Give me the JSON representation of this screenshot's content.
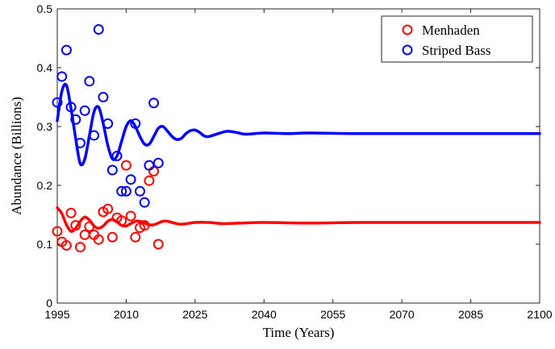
{
  "chart_data": {
    "type": "line",
    "title": "",
    "xlabel": "Time (Years)",
    "ylabel": "Abundance (Billions)",
    "xlim": [
      1995,
      2100
    ],
    "ylim": [
      0,
      0.5
    ],
    "xticks": [
      1995,
      2010,
      2025,
      2040,
      2055,
      2070,
      2085,
      2100
    ],
    "xtick_labels": [
      "1995",
      "2010",
      "2025",
      "2040",
      "2055",
      "2070",
      "2085",
      "2100"
    ],
    "yticks": [
      0,
      0.1,
      0.2,
      0.3,
      0.4,
      0.5
    ],
    "ytick_labels": [
      "0",
      "0.1",
      "0.2",
      "0.3",
      "0.4",
      "0.5"
    ],
    "grid": false,
    "legend_position": "top-right",
    "legend": [
      {
        "label": "Menhaden",
        "color": "#ff0000",
        "marker": "circle-open"
      },
      {
        "label": "Striped Bass",
        "color": "#0000ff",
        "marker": "circle-open"
      }
    ],
    "series": [
      {
        "name": "Menhaden",
        "kind": "model",
        "color": "#ff0000",
        "x": [
          1995,
          1996,
          1997,
          1998,
          1999,
          2000,
          2001,
          2002,
          2003,
          2004,
          2005,
          2006,
          2007,
          2008,
          2009,
          2010,
          2011,
          2012,
          2013,
          2014,
          2015,
          2016,
          2017,
          2018,
          2019,
          2020,
          2022,
          2025,
          2028,
          2031,
          2035,
          2040,
          2050,
          2060,
          2070,
          2080,
          2090,
          2100
        ],
        "y": [
          0.162,
          0.152,
          0.133,
          0.122,
          0.127,
          0.139,
          0.146,
          0.141,
          0.131,
          0.127,
          0.131,
          0.139,
          0.142,
          0.138,
          0.132,
          0.131,
          0.135,
          0.139,
          0.139,
          0.136,
          0.133,
          0.133,
          0.136,
          0.139,
          0.139,
          0.137,
          0.134,
          0.137,
          0.137,
          0.135,
          0.136,
          0.137,
          0.136,
          0.137,
          0.137,
          0.137,
          0.137,
          0.137
        ]
      },
      {
        "name": "Striped Bass",
        "kind": "model",
        "color": "#0000ff",
        "x": [
          1995,
          1996,
          1997,
          1998,
          1999,
          2000,
          2001,
          2002,
          2003,
          2004,
          2005,
          2006,
          2007,
          2008,
          2009,
          2010,
          2011,
          2012,
          2013,
          2014,
          2015,
          2016,
          2017,
          2018,
          2019,
          2020,
          2021,
          2022,
          2023,
          2024,
          2025,
          2026,
          2027,
          2028,
          2030,
          2032,
          2034,
          2036,
          2040,
          2045,
          2050,
          2060,
          2070,
          2080,
          2090,
          2100
        ],
        "y": [
          0.31,
          0.36,
          0.37,
          0.33,
          0.28,
          0.237,
          0.245,
          0.285,
          0.325,
          0.333,
          0.305,
          0.268,
          0.245,
          0.25,
          0.275,
          0.3,
          0.31,
          0.3,
          0.283,
          0.27,
          0.27,
          0.283,
          0.297,
          0.3,
          0.292,
          0.283,
          0.278,
          0.28,
          0.288,
          0.293,
          0.294,
          0.29,
          0.284,
          0.283,
          0.288,
          0.292,
          0.29,
          0.287,
          0.289,
          0.288,
          0.289,
          0.288,
          0.288,
          0.288,
          0.288,
          0.288
        ]
      },
      {
        "name": "Menhaden",
        "kind": "observed",
        "color": "#ff0000",
        "x": [
          1995,
          1996,
          1997,
          1998,
          1999,
          2000,
          2001,
          2002,
          2003,
          2004,
          2005,
          2006,
          2007,
          2008,
          2009,
          2010,
          2011,
          2012,
          2013,
          2014,
          2015,
          2016,
          2017
        ],
        "y": [
          0.122,
          0.104,
          0.098,
          0.153,
          0.132,
          0.095,
          0.116,
          0.13,
          0.116,
          0.108,
          0.155,
          0.16,
          0.112,
          0.145,
          0.14,
          0.234,
          0.148,
          0.112,
          0.128,
          0.132,
          0.208,
          0.224,
          0.1
        ]
      },
      {
        "name": "Striped Bass",
        "kind": "observed",
        "color": "#0000ff",
        "x": [
          1995,
          1996,
          1997,
          1998,
          1999,
          2000,
          2001,
          2002,
          2003,
          2004,
          2005,
          2006,
          2007,
          2008,
          2009,
          2010,
          2011,
          2012,
          2013,
          2014,
          2015,
          2016,
          2017
        ],
        "y": [
          0.341,
          0.385,
          0.43,
          0.333,
          0.312,
          0.272,
          0.327,
          0.377,
          0.285,
          0.465,
          0.35,
          0.305,
          0.226,
          0.25,
          0.19,
          0.19,
          0.21,
          0.305,
          0.19,
          0.171,
          0.234,
          0.34,
          0.238
        ]
      }
    ]
  }
}
